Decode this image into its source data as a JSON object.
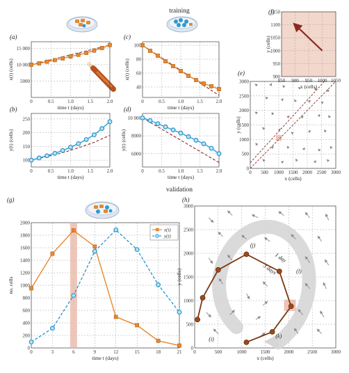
{
  "figure": {
    "training_label": "training",
    "validation_label": "validation"
  },
  "colors": {
    "x_series": "#e8882a",
    "y_series": "#2e9bd0",
    "model_dashed": "#8b2a1e",
    "validation_path": "#7a3712",
    "arrow_gray": "#8a8a8a",
    "highlight": "#e8b4a4"
  },
  "chart_data": [
    {
      "panel": "(a)",
      "type": "line",
      "xlabel": "time t (days)",
      "ylabel": "x(t) (cells)",
      "xlim": [
        0,
        2
      ],
      "ylim": [
        0,
        17000
      ],
      "xticks": [
        "0",
        "0.5",
        "1.0",
        "1.5",
        "2.0"
      ],
      "yticks": [
        "5000",
        "10 000",
        "15 000"
      ],
      "ytick_values": [
        5000,
        10000,
        15000
      ],
      "series": [
        {
          "marker": "square",
          "x": [
            0,
            0.2,
            0.4,
            0.6,
            0.8,
            1.0,
            1.2,
            1.4,
            1.6,
            1.8,
            2.0
          ],
          "y": [
            10000,
            10400,
            10900,
            11400,
            11900,
            12500,
            13000,
            13600,
            14300,
            15100,
            16000
          ]
        },
        {
          "style": "dashed-model",
          "x": [
            0,
            2.0
          ],
          "y": [
            10000,
            16000
          ]
        }
      ]
    },
    {
      "panel": "(b)",
      "type": "line",
      "xlabel": "time t (days)",
      "ylabel": "y(t) (cells)",
      "xlim": [
        0,
        2
      ],
      "ylim": [
        75,
        270
      ],
      "xticks": [
        "0",
        "0.5",
        "1.0",
        "1.5",
        "2.0"
      ],
      "yticks": [
        "100",
        "150",
        "200",
        "250"
      ],
      "ytick_values": [
        100,
        150,
        200,
        250
      ],
      "series": [
        {
          "marker": "circle",
          "x": [
            0,
            0.2,
            0.4,
            0.6,
            0.8,
            1.0,
            1.2,
            1.4,
            1.6,
            1.8,
            2.0
          ],
          "y": [
            100,
            108,
            116,
            125,
            135,
            147,
            160,
            175,
            192,
            215,
            240
          ]
        },
        {
          "style": "dashed-model",
          "x": [
            0,
            0.4,
            0.8,
            1.2,
            1.6,
            2.0
          ],
          "y": [
            100,
            113,
            127,
            145,
            165,
            190
          ]
        }
      ]
    },
    {
      "panel": "(c)",
      "type": "line",
      "xlabel": "time t (days)",
      "ylabel": "x(t) (cells)",
      "xlim": [
        0,
        2
      ],
      "ylim": [
        25,
        105
      ],
      "xticks": [
        "0",
        "0.5",
        "1.0",
        "1.5",
        "2.0"
      ],
      "yticks": [
        "40",
        "60",
        "80",
        "100"
      ],
      "ytick_values": [
        40,
        60,
        80,
        100
      ],
      "series": [
        {
          "marker": "square",
          "x": [
            0,
            0.2,
            0.4,
            0.6,
            0.8,
            1.0,
            1.2,
            1.4,
            1.6,
            1.8,
            2.0
          ],
          "y": [
            100,
            92,
            85,
            77,
            70,
            63,
            56,
            50,
            45,
            41,
            37
          ]
        },
        {
          "style": "dashed-model",
          "x": [
            0,
            2.0
          ],
          "y": [
            100,
            28
          ]
        }
      ]
    },
    {
      "panel": "(d)",
      "type": "line",
      "xlabel": "time t (days)",
      "ylabel": "y(t) (cells)",
      "xlim": [
        0,
        2
      ],
      "ylim": [
        4500,
        10500
      ],
      "xticks": [
        "0",
        "0.5",
        "1.0",
        "1.5",
        "2.0"
      ],
      "yticks": [
        "6000",
        "8000",
        "10 000"
      ],
      "ytick_values": [
        6000,
        8000,
        10000
      ],
      "series": [
        {
          "marker": "circle",
          "x": [
            0,
            0.2,
            0.4,
            0.6,
            0.8,
            1.0,
            1.2,
            1.4,
            1.6,
            1.8,
            2.0
          ],
          "y": [
            10000,
            9700,
            9350,
            9000,
            8650,
            8300,
            7900,
            7500,
            7100,
            6600,
            6000
          ]
        },
        {
          "style": "dashed-model",
          "x": [
            0,
            2.0
          ],
          "y": [
            10000,
            5000
          ]
        }
      ]
    },
    {
      "panel": "(e)",
      "type": "scatter",
      "xlabel": "x (cells)",
      "ylabel": "y (cells)",
      "xlim": [
        0,
        3000
      ],
      "ylim": [
        0,
        3000
      ],
      "xticks": [
        "0",
        "500",
        "1000",
        "1500",
        "2000",
        "2500",
        "3000"
      ],
      "yticks": [
        "0",
        "500",
        "1000",
        "1500",
        "2000",
        "2500",
        "3000"
      ],
      "dashed_diagonals": [
        [
          [
            0,
            0
          ],
          [
            3000,
            3000
          ]
        ],
        [
          [
            0,
            200
          ],
          [
            2600,
            3000
          ]
        ]
      ],
      "highlight_box": [
        900,
        1100,
        950,
        1150
      ],
      "arrows": [
        [
          250,
          2850,
          -80,
          60
        ],
        [
          700,
          2850,
          50,
          80
        ],
        [
          1200,
          2800,
          -60,
          60
        ],
        [
          1750,
          2750,
          -60,
          50
        ],
        [
          2300,
          2700,
          -30,
          80
        ],
        [
          2750,
          2650,
          -50,
          70
        ],
        [
          600,
          2400,
          -60,
          60
        ],
        [
          1100,
          2350,
          60,
          50
        ],
        [
          1600,
          2300,
          -50,
          70
        ],
        [
          2050,
          2300,
          60,
          40
        ],
        [
          2550,
          2250,
          -60,
          50
        ],
        [
          250,
          1900,
          -80,
          40
        ],
        [
          800,
          1850,
          -40,
          80
        ],
        [
          1300,
          1750,
          70,
          60
        ],
        [
          1850,
          1750,
          -70,
          50
        ],
        [
          2400,
          1800,
          40,
          60
        ],
        [
          2800,
          1750,
          -60,
          70
        ],
        [
          500,
          1350,
          -70,
          60
        ],
        [
          1000,
          1300,
          50,
          70
        ],
        [
          1500,
          1200,
          -60,
          50
        ],
        [
          2050,
          1250,
          60,
          60
        ],
        [
          2650,
          1250,
          -50,
          80
        ],
        [
          250,
          800,
          -60,
          70
        ],
        [
          750,
          700,
          60,
          60
        ],
        [
          1350,
          700,
          -60,
          60
        ],
        [
          1850,
          650,
          70,
          50
        ],
        [
          2450,
          600,
          -60,
          70
        ],
        [
          2850,
          700,
          -40,
          60
        ],
        [
          500,
          250,
          -60,
          60
        ],
        [
          1100,
          200,
          60,
          50
        ],
        [
          1650,
          250,
          -60,
          70
        ],
        [
          2250,
          200,
          50,
          70
        ],
        [
          2750,
          250,
          -60,
          50
        ]
      ]
    },
    {
      "panel": "(f)",
      "type": "scatter",
      "xlabel": "x (cells)",
      "ylabel": "y (cells)",
      "xlim": [
        850,
        1050
      ],
      "ylim": [
        900,
        1150
      ],
      "xticks": [
        "850",
        "900",
        "950",
        "1000",
        "1050"
      ],
      "yticks": [
        "900",
        "950",
        "1000",
        "1050",
        "1100",
        "1150"
      ],
      "arrow": [
        [
          1000,
          1000
        ],
        [
          900,
          1100
        ]
      ]
    },
    {
      "panel": "(g)",
      "type": "line",
      "xlabel": "time t (days)",
      "ylabel": "no. cells",
      "xlim": [
        0,
        21
      ],
      "ylim": [
        0,
        2100
      ],
      "xticks": [
        "0",
        "3",
        "6",
        "9",
        "12",
        "15",
        "18",
        "21"
      ],
      "yticks": [
        "0",
        "200",
        "400",
        "600",
        "800",
        "1000",
        "1200",
        "1400",
        "1600",
        "1800",
        "2000"
      ],
      "highlight_x": [
        5.5,
        6.5
      ],
      "legend_position": "top-right",
      "series": [
        {
          "name": "x(t)",
          "style": "solid",
          "marker": "square",
          "x": [
            0,
            3,
            6,
            9,
            12,
            15,
            18,
            21
          ],
          "y": [
            1000,
            1580,
            1970,
            1700,
            520,
            380,
            120,
            40
          ]
        },
        {
          "name": "y(t)",
          "style": "dashed",
          "marker": "circle",
          "x": [
            0,
            3,
            6,
            9,
            12,
            15,
            18,
            21
          ],
          "y": [
            100,
            330,
            880,
            1620,
            1980,
            1650,
            1060,
            600
          ]
        }
      ]
    },
    {
      "panel": "(h)",
      "type": "scatter",
      "xlabel": "x (cells)",
      "ylabel": "y (cells)",
      "xlim": [
        0,
        3000
      ],
      "ylim": [
        0,
        3000
      ],
      "xticks": [
        "0",
        "500",
        "1000",
        "1500",
        "2000",
        "2500",
        "3000"
      ],
      "yticks": [
        "0",
        "500",
        "1000",
        "1500",
        "2000",
        "2500",
        "3000"
      ],
      "highlight_box": [
        1900,
        2150,
        780,
        1020
      ],
      "trajectory": {
        "x": [
          1100,
          1650,
          2050,
          1800,
          1100,
          500,
          170,
          60
        ],
        "y": [
          120,
          340,
          880,
          1620,
          1980,
          1650,
          1060,
          600
        ]
      },
      "annotations": [
        {
          "label": "(i)",
          "x": 300,
          "y": 150
        },
        {
          "label": "(j)",
          "x": 1180,
          "y": 2130
        },
        {
          "label": "(k)",
          "x": 1720,
          "y": 210
        },
        {
          "label": "(l)",
          "x": 2160,
          "y": 1580
        },
        {
          "label": "3 days",
          "x": 1450,
          "y": 1720
        },
        {
          "label": "1 day",
          "x": 1700,
          "y": 1950
        }
      ],
      "arrows": [
        [
          300,
          2750,
          60,
          -60
        ],
        [
          800,
          2800,
          -60,
          60
        ],
        [
          1350,
          2750,
          -80,
          40
        ],
        [
          1900,
          2800,
          -70,
          50
        ],
        [
          2450,
          2750,
          -60,
          70
        ],
        [
          2850,
          2700,
          -40,
          80
        ],
        [
          600,
          2350,
          -60,
          60
        ],
        [
          1100,
          2300,
          -60,
          50
        ],
        [
          1600,
          2250,
          -70,
          50
        ],
        [
          2150,
          2300,
          -60,
          60
        ],
        [
          2700,
          2250,
          -50,
          70
        ],
        [
          300,
          1900,
          50,
          -70
        ],
        [
          800,
          1850,
          -60,
          70
        ],
        [
          1550,
          1300,
          -60,
          60
        ],
        [
          2450,
          1800,
          -60,
          80
        ],
        [
          2850,
          1750,
          -50,
          70
        ],
        [
          600,
          1350,
          -50,
          70
        ],
        [
          1100,
          1150,
          40,
          -70
        ],
        [
          1450,
          900,
          60,
          50
        ],
        [
          2450,
          1250,
          -60,
          70
        ],
        [
          2800,
          1250,
          -40,
          80
        ],
        [
          250,
          750,
          60,
          -60
        ],
        [
          750,
          700,
          60,
          60
        ],
        [
          1300,
          600,
          60,
          40
        ],
        [
          2300,
          700,
          -60,
          70
        ],
        [
          2750,
          650,
          -50,
          80
        ],
        [
          500,
          300,
          -60,
          60
        ],
        [
          1400,
          250,
          60,
          40
        ],
        [
          2200,
          300,
          -50,
          70
        ],
        [
          2700,
          300,
          -60,
          60
        ]
      ]
    }
  ]
}
